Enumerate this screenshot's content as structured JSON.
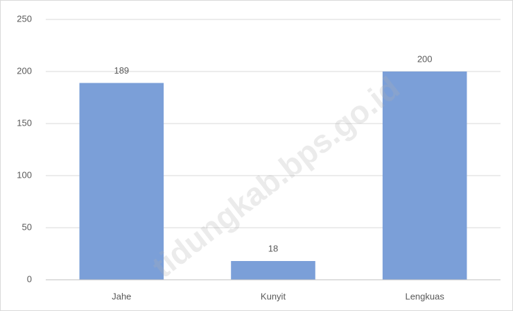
{
  "chart_data": {
    "type": "bar",
    "categories": [
      "Jahe",
      "Kunyit",
      "Lengkuas"
    ],
    "values": [
      189,
      18,
      200
    ],
    "color": "#7b9fd8",
    "ylim": [
      0,
      250
    ],
    "yticks": [
      0,
      50,
      100,
      150,
      200,
      250
    ],
    "grid": true,
    "watermark": "tidungkab.bps.go.id"
  }
}
